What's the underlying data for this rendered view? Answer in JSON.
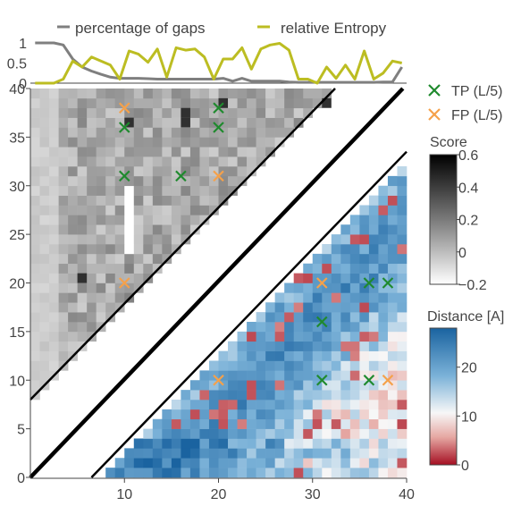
{
  "chart_data": [
    {
      "type": "line",
      "x": [
        1,
        2,
        3,
        4,
        5,
        6,
        7,
        8,
        9,
        10,
        11,
        12,
        13,
        14,
        15,
        16,
        17,
        18,
        19,
        20,
        21,
        22,
        23,
        24,
        25,
        26,
        27,
        28,
        29,
        30,
        31,
        32,
        33,
        34,
        35,
        36,
        37,
        38,
        39,
        40
      ],
      "series": [
        {
          "name": "percentage of gaps",
          "values": [
            1.0,
            1.0,
            1.0,
            0.95,
            0.6,
            0.4,
            0.3,
            0.22,
            0.15,
            0.12,
            0.12,
            0.12,
            0.11,
            0.1,
            0.1,
            0.1,
            0.1,
            0.1,
            0.1,
            0.1,
            0.12,
            0.05,
            0.12,
            0.05,
            0.05,
            0.05,
            0.05,
            0.03,
            0.02,
            0.02,
            0.02,
            0.02,
            0.02,
            0.02,
            0.02,
            0.02,
            0.02,
            0.03,
            0.03,
            0.4
          ]
        },
        {
          "name": "relative Entropy",
          "values": [
            0.0,
            0.0,
            0.0,
            0.1,
            0.55,
            0.4,
            0.65,
            0.55,
            0.45,
            0.1,
            0.8,
            0.72,
            0.52,
            0.85,
            0.15,
            0.88,
            0.82,
            0.85,
            0.65,
            0.1,
            0.6,
            0.6,
            0.88,
            0.35,
            0.85,
            0.95,
            0.99,
            0.82,
            0.1,
            0.1,
            0.0,
            0.4,
            0.12,
            0.45,
            0.1,
            0.8,
            0.1,
            0.25,
            0.55,
            0.5
          ]
        }
      ],
      "yticks": [
        "0",
        "0.5",
        "1"
      ],
      "ylim": [
        0,
        1
      ],
      "legend_position": "top"
    },
    {
      "type": "heatmap",
      "xlim": [
        0,
        40
      ],
      "ylim": [
        0,
        40
      ],
      "xticks": [
        10,
        20,
        30,
        40
      ],
      "yticks": [
        0,
        5,
        10,
        15,
        20,
        25,
        30,
        35,
        40
      ],
      "upper_left_triangle": {
        "name": "Score",
        "colorbar_ticks": [
          "0.6",
          "0.4",
          "0.2",
          "0",
          "−0.2"
        ],
        "colorbar_range": [
          -0.2,
          0.6
        ]
      },
      "lower_right_triangle": {
        "name": "Distance [A]",
        "colorbar_ticks": [
          "20",
          "10",
          "0"
        ],
        "colorbar_range": [
          0,
          28
        ],
        "distances_seed": 73
      },
      "legend": [
        {
          "name": "TP (L/5)",
          "color": "#1f8a2e"
        },
        {
          "name": "FP (L/5)",
          "color": "#f5a14a"
        }
      ],
      "tp_points": [
        [
          10,
          36
        ],
        [
          10,
          31
        ],
        [
          16,
          31
        ],
        [
          20,
          38
        ],
        [
          20,
          36
        ],
        [
          31,
          10
        ],
        [
          31,
          16
        ],
        [
          36,
          10
        ],
        [
          36,
          20
        ],
        [
          38,
          20
        ]
      ],
      "fp_points": [
        [
          10,
          38
        ],
        [
          10,
          20
        ],
        [
          20,
          31
        ],
        [
          20,
          10
        ],
        [
          31,
          20
        ],
        [
          38,
          10
        ]
      ]
    }
  ],
  "colors": {
    "gaps_line": "#7f7f7f",
    "entropy_line": "#bcbd22",
    "tp": "#1f8a2e",
    "fp": "#f5a14a",
    "axis": "#444444"
  },
  "legend": {
    "gaps_label": "percentage of gaps",
    "entropy_label": "relative Entropy",
    "tp_label": "TP (L/5)",
    "fp_label": "FP (L/5)",
    "score_title": "Score",
    "distance_title": "Distance [A]"
  }
}
